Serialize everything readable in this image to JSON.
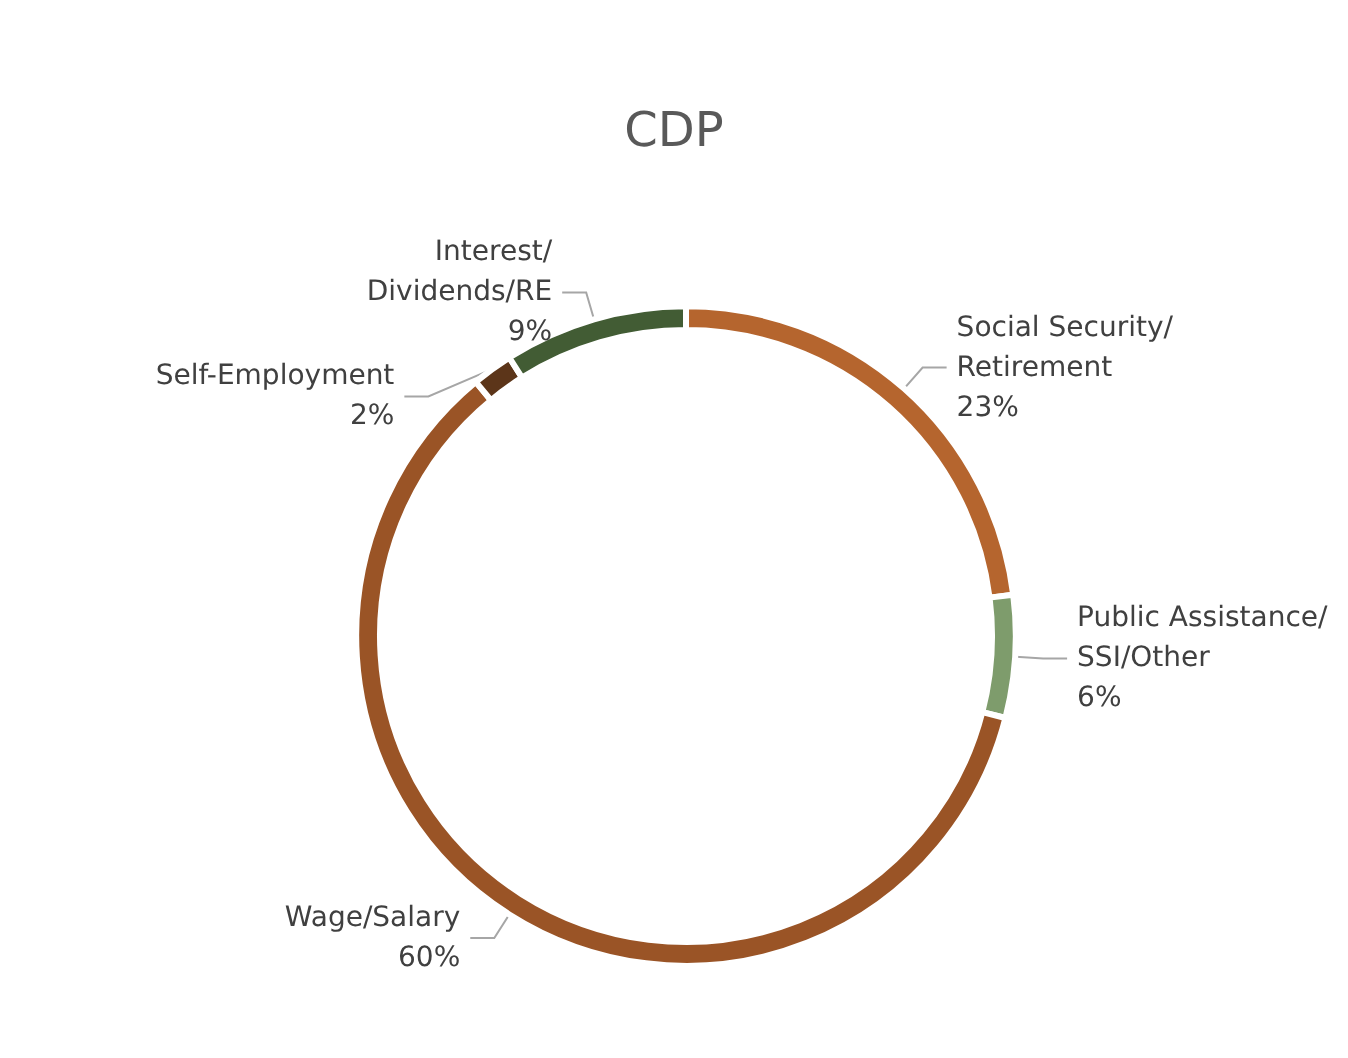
{
  "chart_data": {
    "type": "donut",
    "title": "CDP",
    "categories": [
      "Social Security/Retirement",
      "Public Assistance/SSI/Other",
      "Wage/Salary",
      "Self-Employment",
      "Interest/Dividends/RE"
    ],
    "values": [
      23,
      6,
      60,
      2,
      9
    ],
    "value_labels": [
      "23%",
      "6%",
      "60%",
      "2%",
      "9%"
    ],
    "colors": [
      "#b5652e",
      "#7e9c6c",
      "#9a5426",
      "#5c3519",
      "#425c34"
    ],
    "legend": false
  }
}
